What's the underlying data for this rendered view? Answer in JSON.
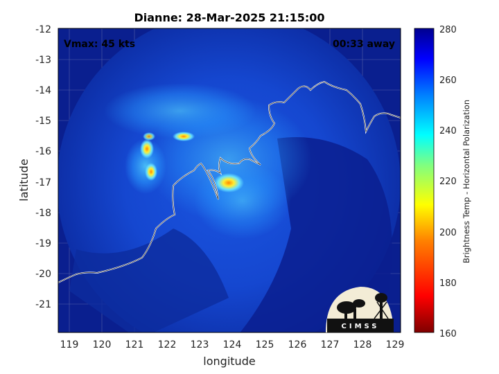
{
  "title": "Dianne: 28-Mar-2025 21:15:00",
  "vmax_label": "Vmax: 45 kts",
  "time_label": "00:33 away",
  "x_axis": {
    "label": "longitude",
    "ticks": [
      "119",
      "120",
      "121",
      "122",
      "123",
      "124",
      "125",
      "126",
      "127",
      "128",
      "129"
    ]
  },
  "y_axis": {
    "label": "latitude",
    "ticks": [
      "-12",
      "-13",
      "-14",
      "-15",
      "-16",
      "-17",
      "-18",
      "-19",
      "-20",
      "-21"
    ]
  },
  "colorbar": {
    "label": "Brightness Temp - Horizontal Polarization",
    "ticks": [
      "280",
      "260",
      "240",
      "220",
      "200",
      "180",
      "160"
    ]
  },
  "logo": {
    "text": "CIMSS"
  },
  "colors": {
    "background_cold": "#0a1f8f",
    "field_mid": "#1f5fe8",
    "warm_core": "#ffcc33",
    "coastline": "#ffffff"
  }
}
